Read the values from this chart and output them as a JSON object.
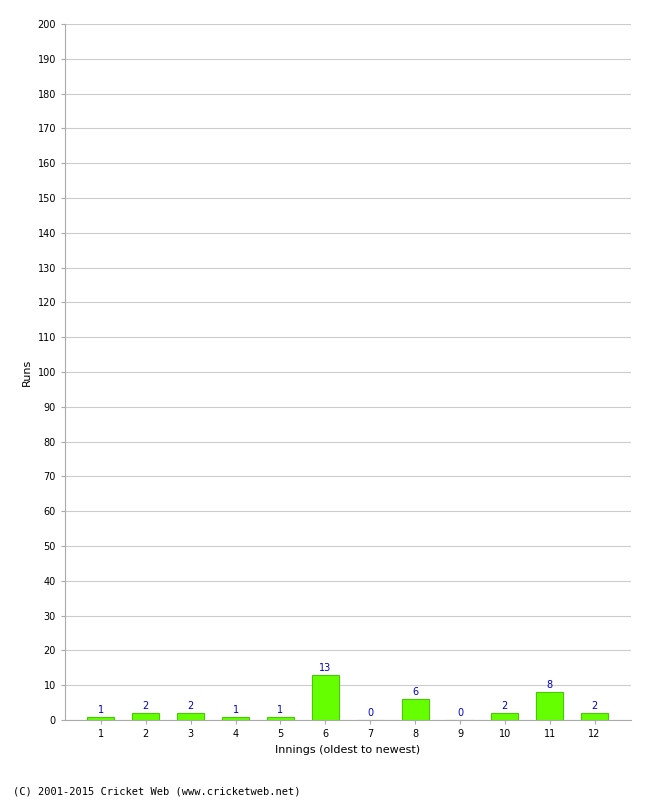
{
  "innings": [
    1,
    2,
    3,
    4,
    5,
    6,
    7,
    8,
    9,
    10,
    11,
    12
  ],
  "runs": [
    1,
    2,
    2,
    1,
    1,
    13,
    0,
    6,
    0,
    2,
    8,
    2
  ],
  "bar_color": "#66ff00",
  "bar_edge_color": "#44cc00",
  "label_color": "#0000cc",
  "xlabel": "Innings (oldest to newest)",
  "ylabel": "Runs",
  "ylim": [
    0,
    200
  ],
  "yticks": [
    0,
    10,
    20,
    30,
    40,
    50,
    60,
    70,
    80,
    90,
    100,
    110,
    120,
    130,
    140,
    150,
    160,
    170,
    180,
    190,
    200
  ],
  "footer": "(C) 2001-2015 Cricket Web (www.cricketweb.net)",
  "background_color": "#ffffff",
  "grid_color": "#cccccc",
  "label_fontsize": 7,
  "axis_label_fontsize": 8,
  "tick_fontsize": 7,
  "footer_fontsize": 7.5
}
